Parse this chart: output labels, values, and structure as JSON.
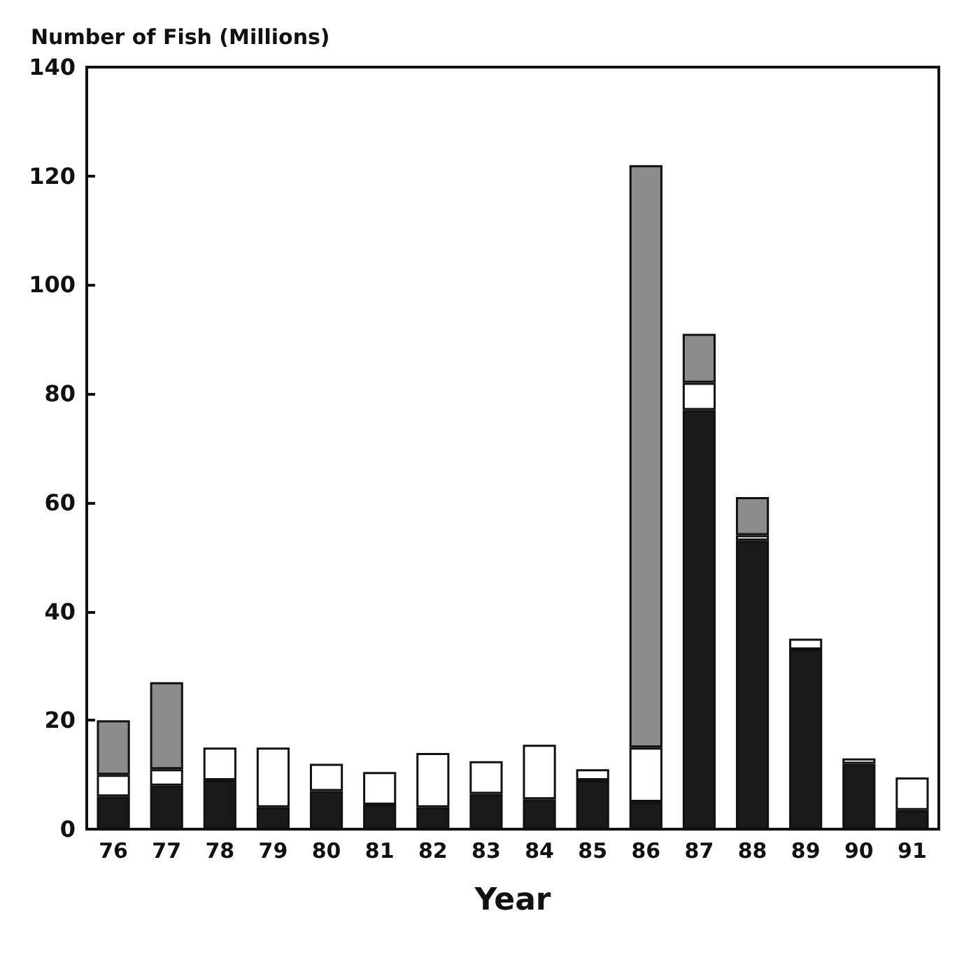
{
  "chart_data": {
    "type": "bar",
    "stacked": true,
    "xlabel": "Year",
    "ylabel": "Number of Fish (Millions)",
    "categories": [
      "76",
      "77",
      "78",
      "79",
      "80",
      "81",
      "82",
      "83",
      "84",
      "85",
      "86",
      "87",
      "88",
      "89",
      "90",
      "91"
    ],
    "series": [
      {
        "color": "#1a1a1a",
        "values": [
          6,
          8,
          9,
          4,
          7,
          4.5,
          4,
          6.5,
          5.5,
          9,
          5,
          77,
          53,
          33,
          12,
          3.5
        ]
      },
      {
        "color": "#ffffff",
        "values": [
          4,
          3,
          6,
          11,
          5,
          6,
          10,
          6,
          10,
          2,
          10,
          5,
          1,
          2,
          1,
          6
        ]
      },
      {
        "color": "#8c8c8c",
        "values": [
          10,
          16,
          null,
          null,
          null,
          null,
          null,
          null,
          null,
          null,
          107,
          9,
          7,
          null,
          null,
          null
        ]
      }
    ],
    "ylim": [
      0,
      140
    ],
    "yticks": [
      0,
      20,
      40,
      60,
      80,
      100,
      120,
      140
    ],
    "grid": false
  }
}
